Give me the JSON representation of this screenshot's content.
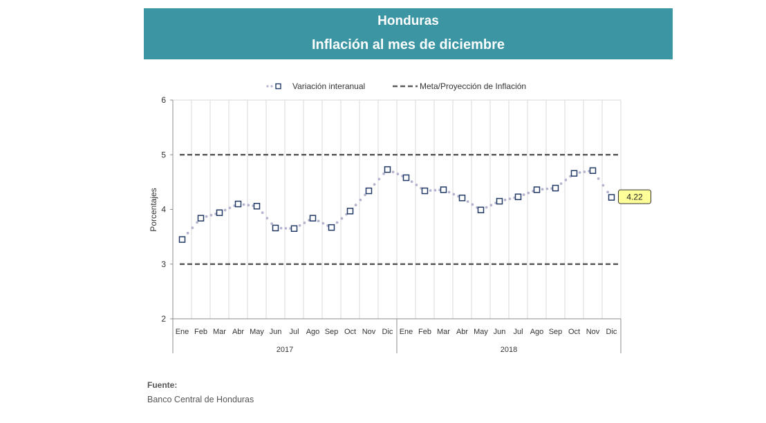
{
  "header": {
    "title": "Honduras",
    "subtitle": "Inflación al mes de diciembre"
  },
  "source": {
    "label": "Fuente:",
    "name": "Banco Central de Honduras"
  },
  "colors": {
    "banner": "#3b95a3",
    "series": "#1f3864",
    "dots": "#b4b4cf",
    "target": "#595959",
    "callout_bg": "#ffff99"
  },
  "chart_data": {
    "type": "line",
    "ylabel": "Porcentajes",
    "ylim": [
      2,
      6
    ],
    "yticks": [
      2,
      3,
      4,
      5,
      6
    ],
    "grid": "vertical",
    "legend_position": "top",
    "categories": [
      "Ene",
      "Feb",
      "Mar",
      "Abr",
      "May",
      "Jun",
      "Jul",
      "Ago",
      "Sep",
      "Oct",
      "Nov",
      "Dic",
      "Ene",
      "Feb",
      "Mar",
      "Abr",
      "May",
      "Jun",
      "Jul",
      "Ago",
      "Sep",
      "Oct",
      "Nov",
      "Dic"
    ],
    "year_groups": [
      {
        "label": "2017",
        "count": 12
      },
      {
        "label": "2018",
        "count": 12
      }
    ],
    "series": [
      {
        "name": "Variación interanual",
        "style": "dotted-with-square-markers",
        "values": [
          3.45,
          3.84,
          3.94,
          4.1,
          4.06,
          3.66,
          3.65,
          3.84,
          3.67,
          3.97,
          4.34,
          4.73,
          4.58,
          4.34,
          4.36,
          4.21,
          3.99,
          4.15,
          4.23,
          4.36,
          4.39,
          4.66,
          4.71,
          4.22
        ]
      },
      {
        "name": "Meta/Proyección de Inflación",
        "style": "dashed",
        "values": [
          5,
          5,
          5,
          5,
          5,
          5,
          5,
          5,
          5,
          5,
          5,
          5,
          5,
          5,
          5,
          5,
          5,
          5,
          5,
          5,
          5,
          5,
          5,
          5
        ]
      },
      {
        "name": "",
        "style": "dashed",
        "values": [
          3,
          3,
          3,
          3,
          3,
          3,
          3,
          3,
          3,
          3,
          3,
          3,
          3,
          3,
          3,
          3,
          3,
          3,
          3,
          3,
          3,
          3,
          3,
          3
        ]
      }
    ],
    "annotations": [
      {
        "index": 23,
        "value": "4.22"
      }
    ]
  }
}
